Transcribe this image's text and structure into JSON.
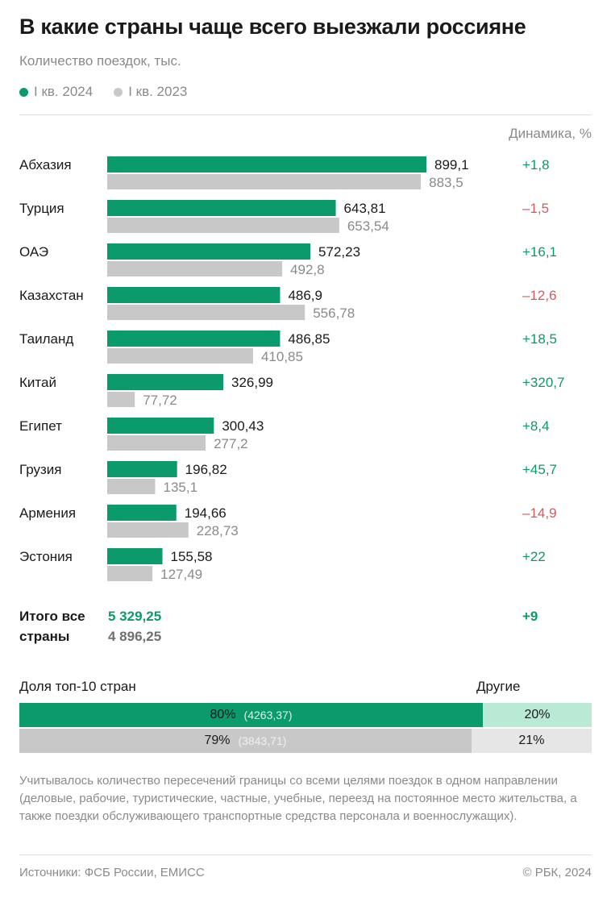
{
  "title": "В какие страны чаще всего выезжали россияне",
  "subtitle": "Количество поездок, тыс.",
  "legend": [
    {
      "label": "I кв. 2024",
      "color": "#0a9a6b"
    },
    {
      "label": "I кв. 2023",
      "color": "#c8c8c8"
    }
  ],
  "dynamics_header": "Динамика, %",
  "colors": {
    "current": "#0a9a6b",
    "previous": "#c8c8c8",
    "positive": "#0a9a6b",
    "negative": "#d45a5a",
    "current_light": "#b9ead6",
    "previous_light": "#e6e6e6"
  },
  "chart_data": {
    "type": "bar",
    "orientation": "horizontal",
    "title": "В какие страны чаще всего выезжали россияне",
    "ylabel": "Количество поездок, тыс.",
    "categories": [
      "Абхазия",
      "Турция",
      "ОАЭ",
      "Казахстан",
      "Таиланд",
      "Китай",
      "Египет",
      "Грузия",
      "Армения",
      "Эстония"
    ],
    "series": [
      {
        "name": "I кв. 2024",
        "values": [
          899.1,
          643.81,
          572.23,
          486.9,
          486.85,
          326.99,
          300.43,
          196.82,
          194.66,
          155.58
        ],
        "labels": [
          "899,1",
          "643,81",
          "572,23",
          "486,9",
          "486,85",
          "326,99",
          "300,43",
          "196,82",
          "194,66",
          "155,58"
        ]
      },
      {
        "name": "I кв. 2023",
        "values": [
          883.5,
          653.54,
          492.8,
          556.78,
          410.85,
          77.72,
          277.2,
          135.1,
          228.73,
          127.49
        ],
        "labels": [
          "883,5",
          "653,54",
          "492,8",
          "556,78",
          "410,85",
          "77,72",
          "277,2",
          "135,1",
          "228,73",
          "127,49"
        ]
      }
    ],
    "dynamics": [
      "+1,8",
      "–1,5",
      "+16,1",
      "–12,6",
      "+18,5",
      "+320,7",
      "+8,4",
      "+45,7",
      "–14,9",
      "+22"
    ],
    "dynamics_values": [
      1.8,
      -1.5,
      16.1,
      -12.6,
      18.5,
      320.7,
      8.4,
      45.7,
      -14.9,
      22
    ],
    "xlim": [
      0,
      899.1
    ]
  },
  "totals": {
    "label": "Итого все страны",
    "current": "5 329,25",
    "previous": "4 896,25",
    "dynamics": "+9"
  },
  "share": {
    "label": "Доля топ-10 стран",
    "others_label": "Другие",
    "rows": [
      {
        "percent": "80%",
        "value": "(4263,37)",
        "share": 0.8,
        "others": "20%"
      },
      {
        "percent": "79%",
        "value": "(3843,71)",
        "share": 0.79,
        "others": "21%"
      }
    ]
  },
  "note": "Учитывалось количество пересечений границы со всеми целями поездок в одном направлении (деловые, рабочие, туристические, частные, учебные, переезд на постоянное место жительства, а также поездки обслуживающего транспортные средства персонала и военнослужащих).",
  "footer": {
    "sources": "Источники: ФСБ России, ЕМИСС",
    "copyright": "© РБК, 2024"
  }
}
